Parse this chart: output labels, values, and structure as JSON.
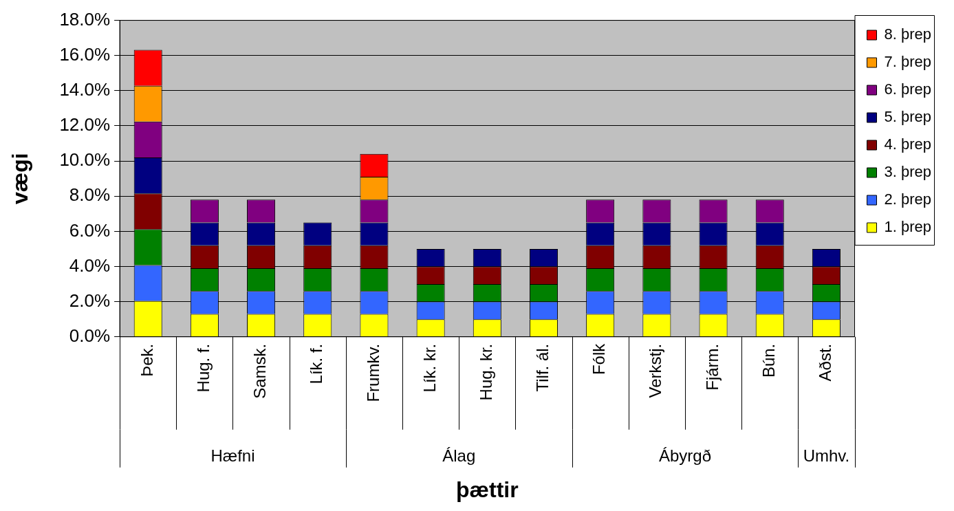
{
  "chart_data": {
    "type": "bar",
    "stacked": true,
    "xlabel": "þættir",
    "ylabel": "vægi",
    "categories": [
      "Þek.",
      "Hug. f.",
      "Samsk.",
      "Lík. f.",
      "Frumkv.",
      "Lík. kr.",
      "Hug. kr.",
      "Tilf. ál.",
      "Fólk",
      "Verkstj.",
      "Fjárm.",
      "Bún.",
      "Aðst."
    ],
    "annotations": [
      "Hæfni",
      "Álag",
      "Ábyrgð",
      "Umhv."
    ],
    "series": [
      {
        "name": "1. þrep",
        "color": "#ffff00",
        "values": [
          2.04,
          1.3,
          1.3,
          1.3,
          1.3,
          1.0,
          1.0,
          1.0,
          1.3,
          1.3,
          1.3,
          1.3,
          1.0
        ]
      },
      {
        "name": "2. þrep",
        "color": "#3366ff",
        "values": [
          2.04,
          1.3,
          1.3,
          1.3,
          1.3,
          1.0,
          1.0,
          1.0,
          1.3,
          1.3,
          1.3,
          1.3,
          1.0
        ]
      },
      {
        "name": "3. þrep",
        "color": "#008000",
        "values": [
          2.04,
          1.3,
          1.3,
          1.3,
          1.3,
          1.0,
          1.0,
          1.0,
          1.3,
          1.3,
          1.3,
          1.3,
          1.0
        ]
      },
      {
        "name": "4. þrep",
        "color": "#800000",
        "values": [
          2.04,
          1.3,
          1.3,
          1.3,
          1.3,
          1.0,
          1.0,
          1.0,
          1.3,
          1.3,
          1.3,
          1.3,
          1.0
        ]
      },
      {
        "name": "5. þrep",
        "color": "#000080",
        "values": [
          2.04,
          1.3,
          1.3,
          1.3,
          1.3,
          1.0,
          1.0,
          1.0,
          1.3,
          1.3,
          1.3,
          1.3,
          1.0
        ]
      },
      {
        "name": "6. þrep",
        "color": "#800080",
        "values": [
          2.04,
          1.3,
          1.3,
          null,
          1.3,
          null,
          null,
          null,
          1.3,
          1.3,
          1.3,
          1.3,
          null
        ]
      },
      {
        "name": "7. þrep",
        "color": "#ff9900",
        "values": [
          2.04,
          null,
          null,
          null,
          1.3,
          null,
          null,
          null,
          null,
          null,
          null,
          null,
          null
        ]
      },
      {
        "name": "8. þrep",
        "color": "#ff0000",
        "values": [
          2.04,
          null,
          null,
          null,
          1.3,
          null,
          null,
          null,
          null,
          null,
          null,
          null,
          null
        ]
      }
    ],
    "ylim": [
      0,
      18
    ],
    "yticks": [
      {
        "value": 0,
        "label": "0.0%"
      },
      {
        "value": 2,
        "label": "2.0%"
      },
      {
        "value": 4,
        "label": "4.0%"
      },
      {
        "value": 6,
        "label": "6.0%"
      },
      {
        "value": 8,
        "label": "8.0%"
      },
      {
        "value": 10,
        "label": "10.0%"
      },
      {
        "value": 12,
        "label": "12.0%"
      },
      {
        "value": 14,
        "label": "14.0%"
      },
      {
        "value": 16,
        "label": "16.0%"
      },
      {
        "value": 18,
        "label": "18.0%"
      }
    ],
    "grid": "y",
    "legend": "right"
  }
}
